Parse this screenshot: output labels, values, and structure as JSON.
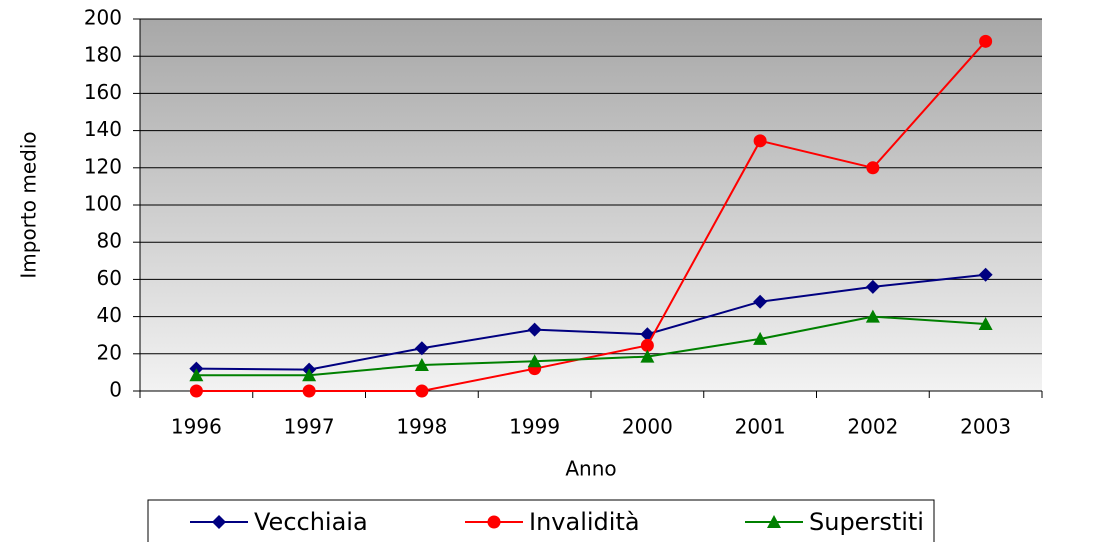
{
  "chart_data": {
    "type": "line",
    "x_label": "Anno",
    "y_label": "Importo medio",
    "categories": [
      "1996",
      "1997",
      "1998",
      "1999",
      "2000",
      "2001",
      "2002",
      "2003"
    ],
    "series": [
      {
        "name": "Vecchiaia",
        "color": "#000080",
        "marker": "diamond",
        "values": [
          12,
          11.5,
          23,
          33,
          30.5,
          48,
          56,
          62.5
        ]
      },
      {
        "name": "Invalidità",
        "color": "#ff0000",
        "marker": "circle",
        "values": [
          0,
          0,
          0,
          12,
          24.5,
          134.5,
          120,
          188
        ]
      },
      {
        "name": "Superstiti",
        "color": "#008000",
        "marker": "triangle",
        "values": [
          8.5,
          8.5,
          14,
          16,
          18.5,
          28,
          40,
          36
        ]
      }
    ],
    "ylim": [
      0,
      200
    ],
    "yticks": [
      0,
      20,
      40,
      60,
      80,
      100,
      120,
      140,
      160,
      180,
      200
    ],
    "grid": true,
    "legend": "bottom"
  }
}
